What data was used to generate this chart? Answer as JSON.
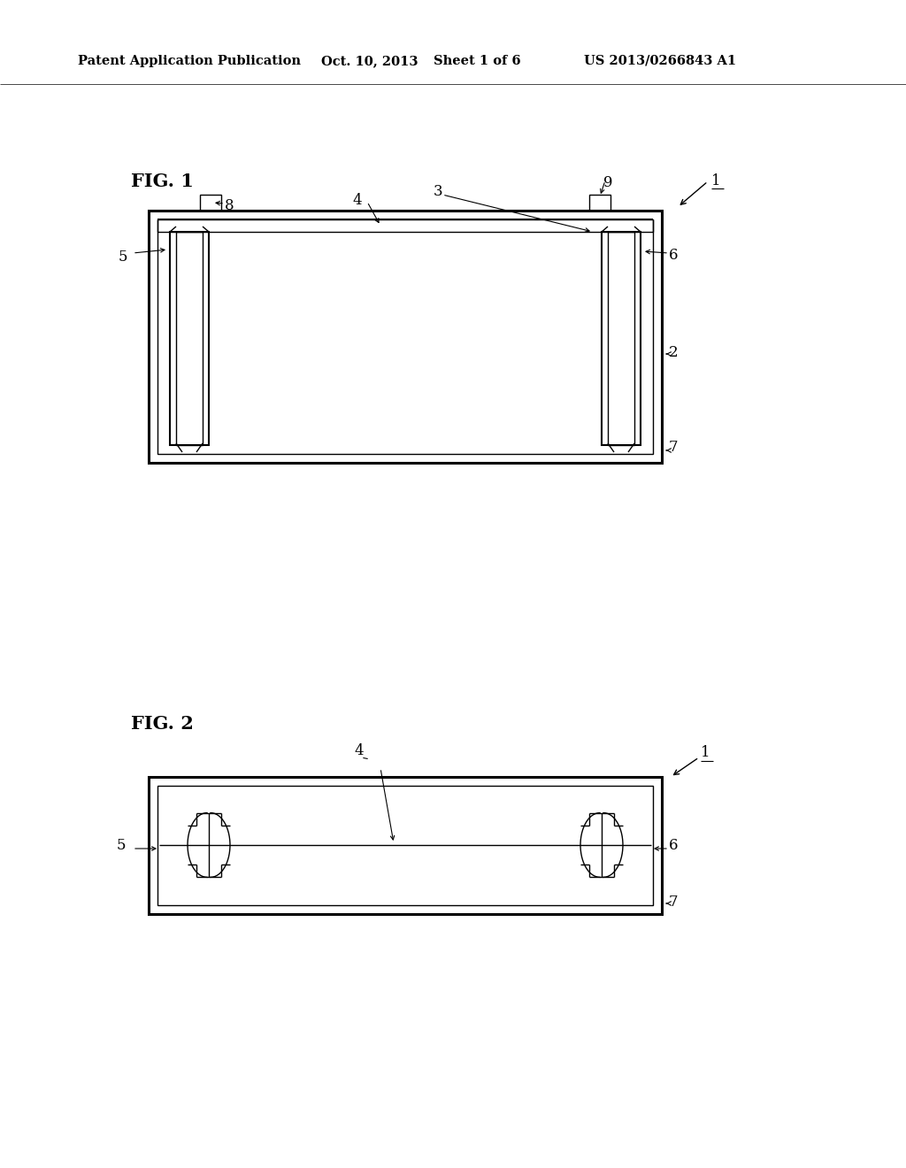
{
  "bg_color": "#ffffff",
  "line_color": "#000000",
  "header_text": "Patent Application Publication",
  "header_date": "Oct. 10, 2013",
  "header_sheet": "Sheet 1 of 6",
  "header_patent": "US 2013/0266843 A1",
  "fig1_label": "FIG. 1",
  "fig2_label": "FIG. 2",
  "lw_thin": 1.0,
  "lw_med": 1.5,
  "lw_thick": 2.2
}
